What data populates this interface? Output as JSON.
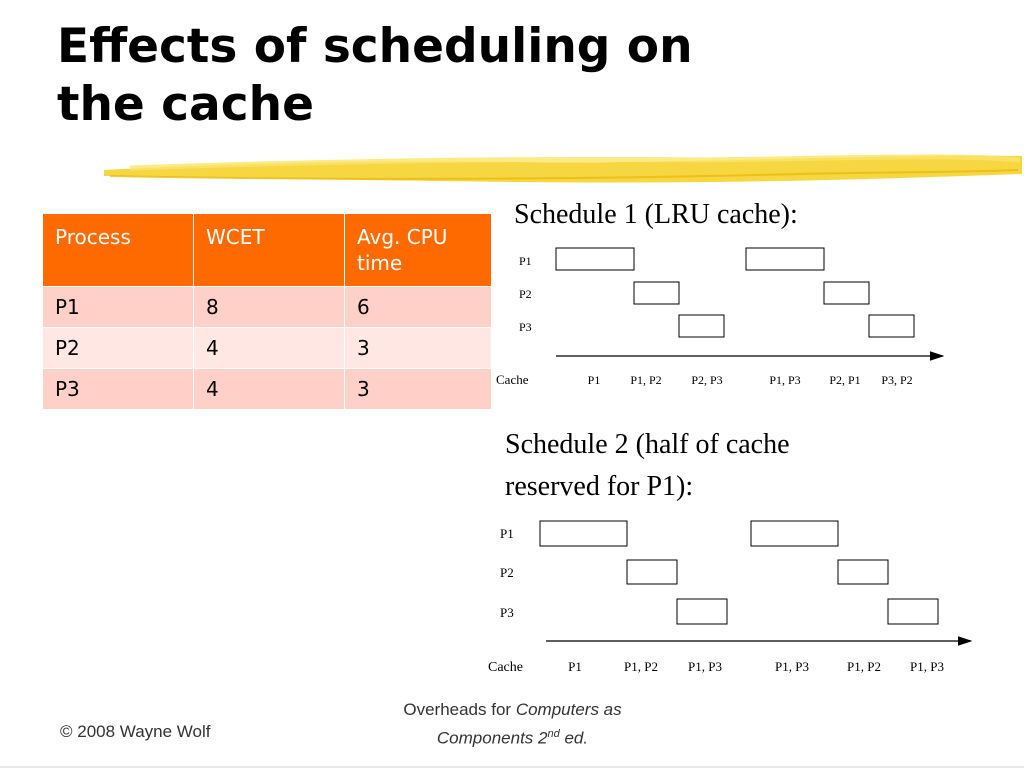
{
  "slide": {
    "title_line1": "Effects of scheduling on",
    "title_line2": "the cache"
  },
  "table": {
    "headers": [
      "Process",
      "WCET",
      "Avg. CPU time"
    ],
    "rows": [
      [
        "P1",
        "8",
        "6"
      ],
      [
        "P2",
        "4",
        "3"
      ],
      [
        "P3",
        "4",
        "3"
      ]
    ],
    "colors": {
      "header": "#ff6a00",
      "row_odd": "#ffd0c8",
      "row_even": "#ffe8e4"
    }
  },
  "schedule1": {
    "heading": "Schedule 1 (LRU cache):",
    "process_labels": [
      "P1",
      "P2",
      "P3"
    ],
    "cache_label": "Cache",
    "cache_states": [
      "P1",
      "P1, P2",
      "P2, P3",
      "P1, P3",
      "P2, P1",
      "P3, P2"
    ]
  },
  "schedule2": {
    "heading_line1": "Schedule 2 (half of cache",
    "heading_line2": "reserved for P1):",
    "process_labels": [
      "P1",
      "P2",
      "P3"
    ],
    "cache_label": "Cache",
    "cache_states": [
      "P1",
      "P1, P2",
      "P1, P3",
      "P1, P3",
      "P1, P2",
      "P1, P3"
    ]
  },
  "footer": {
    "copyright": "© 2008 Wayne Wolf",
    "overheads_prefix": "Overheads for ",
    "book_title_a": "Computers as",
    "book_title_b": "Components 2",
    "edition_sup": "nd",
    "edition_suffix": " ed."
  }
}
